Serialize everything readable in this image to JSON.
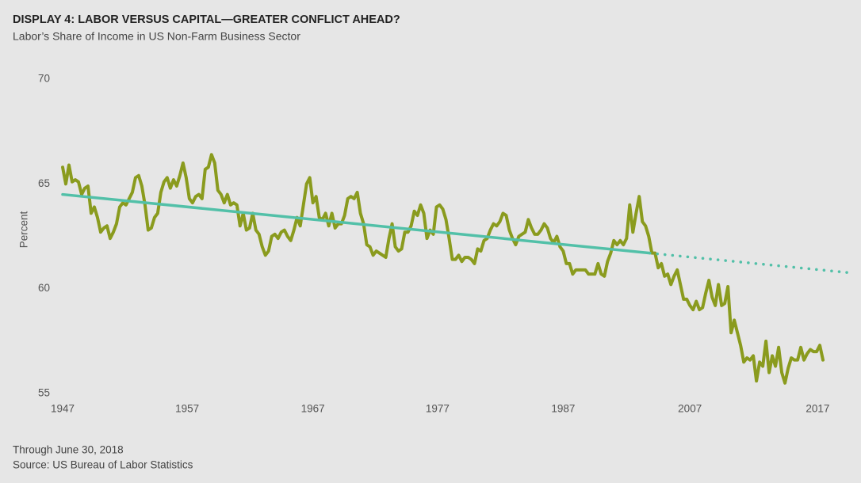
{
  "chart_data": {
    "type": "line",
    "title": "DISPLAY 4: LABOR VERSUS CAPITAL—GREATER CONFLICT AHEAD?",
    "subtitle": "Labor’s Share of Income in US Non-Farm Business Sector",
    "y_label": "Percent",
    "notes": [
      "Through June 30, 2018",
      "Source: US Bureau of Labor Statistics"
    ],
    "xlim": [
      1947,
      2022
    ],
    "xticks": [
      {
        "value": 1947,
        "label": "1947"
      },
      {
        "value": 1958.8,
        "label": "1957"
      },
      {
        "value": 1970.7,
        "label": "1967"
      },
      {
        "value": 1982.5,
        "label": "1977"
      },
      {
        "value": 1994.4,
        "label": "1987"
      },
      {
        "value": 2006.4,
        "label": "2007"
      },
      {
        "value": 2018.5,
        "label": "2017"
      }
    ],
    "ylim": [
      55,
      70
    ],
    "yticks": [
      55,
      60,
      65,
      70
    ],
    "grid": false,
    "series": [
      {
        "color": "#8a9b1e",
        "style": "solid",
        "x": [
          1947,
          1947.3,
          1947.6,
          1947.9,
          1948.2,
          1948.5,
          1948.8,
          1949.1,
          1949.4,
          1949.7,
          1950,
          1950.3,
          1950.6,
          1950.9,
          1951.2,
          1951.5,
          1951.8,
          1952.1,
          1952.4,
          1952.7,
          1953,
          1953.3,
          1953.6,
          1953.9,
          1954.2,
          1954.5,
          1954.8,
          1955.1,
          1955.4,
          1955.7,
          1956,
          1956.3,
          1956.6,
          1956.9,
          1957.2,
          1957.5,
          1957.8,
          1958.1,
          1958.4,
          1958.7,
          1959,
          1959.3,
          1959.6,
          1959.9,
          1960.2,
          1960.5,
          1960.8,
          1961.1,
          1961.4,
          1961.7,
          1962,
          1962.3,
          1962.6,
          1962.9,
          1963.2,
          1963.5,
          1963.8,
          1964.1,
          1964.4,
          1964.7,
          1965,
          1965.3,
          1965.6,
          1965.9,
          1966.2,
          1966.5,
          1966.8,
          1967.1,
          1967.4,
          1967.7,
          1968,
          1968.3,
          1968.6,
          1968.9,
          1969.2,
          1969.5,
          1969.8,
          1970.1,
          1970.4,
          1970.7,
          1971,
          1971.3,
          1971.6,
          1971.9,
          1972.2,
          1972.5,
          1972.8,
          1973.1,
          1973.4,
          1973.7,
          1974,
          1974.3,
          1974.6,
          1974.9,
          1975.2,
          1975.5,
          1975.8,
          1976.1,
          1976.4,
          1976.7,
          1977,
          1977.3,
          1977.6,
          1977.9,
          1978.2,
          1978.5,
          1978.8,
          1979.1,
          1979.4,
          1979.7,
          1980,
          1980.3,
          1980.6,
          1980.9,
          1981.2,
          1981.5,
          1981.8,
          1982.1,
          1982.4,
          1982.7,
          1983,
          1983.3,
          1983.6,
          1983.9,
          1984.2,
          1984.5,
          1984.8,
          1985.1,
          1985.4,
          1985.7,
          1986,
          1986.3,
          1986.6,
          1986.9,
          1987.2,
          1987.5,
          1987.8,
          1988.1,
          1988.4,
          1988.7,
          1989,
          1989.3,
          1989.6,
          1989.9,
          1990.2,
          1990.5,
          1990.8,
          1991.1,
          1991.4,
          1991.7,
          1992,
          1992.3,
          1992.6,
          1992.9,
          1993.2,
          1993.5,
          1993.8,
          1994.1,
          1994.4,
          1994.7,
          1995,
          1995.3,
          1995.6,
          1995.9,
          1996.2,
          1996.5,
          1996.8,
          1997.1,
          1997.4,
          1997.7,
          1998,
          1998.3,
          1998.6,
          1998.9,
          1999.2,
          1999.5,
          1999.8,
          2000.1,
          2000.4,
          2000.7,
          2001,
          2001.3,
          2001.6,
          2001.9,
          2002.2,
          2002.5,
          2002.8,
          2003.1,
          2003.4,
          2003.7,
          2004,
          2004.3,
          2004.6,
          2004.9,
          2005.2,
          2005.5,
          2005.8,
          2006.1,
          2006.4,
          2006.7,
          2007,
          2007.3,
          2007.6,
          2007.9,
          2008.2,
          2008.5,
          2008.8,
          2009.1,
          2009.4,
          2009.7,
          2010,
          2010.3,
          2010.6,
          2010.9,
          2011.2,
          2011.5,
          2011.8,
          2012.1,
          2012.4,
          2012.7,
          2013,
          2013.3,
          2013.6,
          2013.9,
          2014.2,
          2014.5,
          2014.8,
          2015.1,
          2015.4,
          2015.7,
          2016,
          2016.3,
          2016.6,
          2016.9,
          2017.2,
          2017.5,
          2017.8,
          2018.1,
          2018.4,
          2018.7,
          2019
        ],
        "values": [
          65.8,
          65.0,
          65.9,
          65.1,
          65.2,
          65.1,
          64.5,
          64.8,
          64.9,
          63.6,
          63.9,
          63.4,
          62.7,
          62.9,
          63.0,
          62.4,
          62.7,
          63.1,
          63.9,
          64.1,
          64.0,
          64.3,
          64.6,
          65.3,
          65.4,
          64.9,
          64.0,
          62.8,
          62.9,
          63.4,
          63.6,
          64.6,
          65.1,
          65.3,
          64.8,
          65.2,
          64.9,
          65.4,
          66.0,
          65.3,
          64.3,
          64.1,
          64.4,
          64.5,
          64.3,
          65.7,
          65.8,
          66.4,
          66.0,
          64.7,
          64.5,
          64.1,
          64.5,
          64.0,
          64.1,
          64.0,
          63.0,
          63.6,
          62.8,
          62.9,
          63.6,
          62.8,
          62.6,
          62.0,
          61.6,
          61.8,
          62.5,
          62.6,
          62.4,
          62.7,
          62.8,
          62.5,
          62.3,
          62.8,
          63.4,
          63.0,
          64.0,
          65.0,
          65.3,
          64.1,
          64.4,
          63.4,
          63.3,
          63.6,
          63.0,
          63.6,
          62.9,
          63.1,
          63.1,
          63.5,
          64.3,
          64.4,
          64.3,
          64.6,
          63.6,
          63.1,
          62.1,
          62.0,
          61.6,
          61.8,
          61.7,
          61.6,
          61.5,
          62.4,
          63.1,
          62.0,
          61.8,
          61.9,
          62.7,
          62.7,
          63.0,
          63.7,
          63.5,
          64.0,
          63.6,
          62.4,
          62.8,
          62.6,
          63.9,
          64.0,
          63.8,
          63.3,
          62.4,
          61.4,
          61.4,
          61.6,
          61.3,
          61.5,
          61.5,
          61.4,
          61.2,
          61.9,
          61.8,
          62.3,
          62.4,
          62.8,
          63.1,
          63.0,
          63.2,
          63.6,
          63.5,
          62.8,
          62.4,
          62.1,
          62.5,
          62.6,
          62.7,
          63.3,
          62.9,
          62.6,
          62.6,
          62.8,
          63.1,
          62.9,
          62.4,
          62.2,
          62.5,
          62.0,
          61.8,
          61.2,
          61.2,
          60.7,
          60.9,
          60.9,
          60.9,
          60.9,
          60.7,
          60.7,
          60.7,
          61.2,
          60.7,
          60.6,
          61.3,
          61.7,
          62.3,
          62.1,
          62.3,
          62.1,
          62.4,
          64.0,
          62.7,
          63.6,
          64.4,
          63.2,
          63.0,
          62.5,
          61.7,
          61.7,
          61.0,
          61.2,
          60.6,
          60.7,
          60.2,
          60.6,
          60.9,
          60.2,
          59.5,
          59.5,
          59.2,
          59.0,
          59.4,
          59.0,
          59.1,
          59.8,
          60.4,
          59.6,
          59.2,
          60.2,
          59.2,
          59.3,
          60.1,
          57.9,
          58.5,
          57.9,
          57.3,
          56.5,
          56.7,
          56.6,
          56.8,
          55.6,
          56.5,
          56.3,
          57.5,
          56.0,
          56.8,
          56.3,
          57.2,
          56.0,
          55.5,
          56.2,
          56.7,
          56.6,
          56.6,
          57.2,
          56.6,
          56.9,
          57.1,
          57.0,
          57.0,
          57.3,
          56.6
        ]
      },
      {
        "color": "#52c0a8",
        "style": "solid",
        "x": [
          1947,
          2002.6
        ],
        "values": [
          64.5,
          61.7
        ]
      },
      {
        "color": "#52c0a8",
        "style": "dotted",
        "x": [
          2002.6,
          2021.8
        ],
        "values": [
          61.7,
          60.75
        ]
      }
    ]
  }
}
